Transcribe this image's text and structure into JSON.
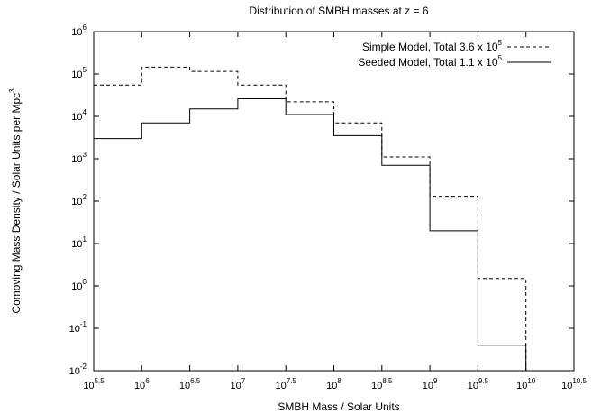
{
  "chart_data": {
    "type": "line",
    "step": true,
    "title": "Distribution of SMBH masses at z = 6",
    "xlabel": "SMBH Mass / Solar Units",
    "ylabel": "Comoving Mass Density / Solar Units per Mpc",
    "ylabel_sup": "3",
    "x_scale": "log",
    "y_scale": "log",
    "xlim": [
      316227.766,
      31622776601.7
    ],
    "ylim": [
      0.01,
      1000000
    ],
    "x_ticks": [
      {
        "base": "10",
        "exp": "5.5",
        "value": 316227.766
      },
      {
        "base": "10",
        "exp": "6",
        "value": 1000000
      },
      {
        "base": "10",
        "exp": "6.5",
        "value": 3162277.66
      },
      {
        "base": "10",
        "exp": "7",
        "value": 10000000
      },
      {
        "base": "10",
        "exp": "7.5",
        "value": 31622776.6
      },
      {
        "base": "10",
        "exp": "8",
        "value": 100000000
      },
      {
        "base": "10",
        "exp": "8.5",
        "value": 316227766
      },
      {
        "base": "10",
        "exp": "9",
        "value": 1000000000
      },
      {
        "base": "10",
        "exp": "9.5",
        "value": 3162277660
      },
      {
        "base": "10",
        "exp": "10",
        "value": 10000000000
      },
      {
        "base": "10",
        "exp": "10.5",
        "value": 31622776601.7
      }
    ],
    "y_ticks": [
      {
        "base": "10",
        "exp": "-2",
        "value": 0.01
      },
      {
        "base": "10",
        "exp": "-1",
        "value": 0.1
      },
      {
        "base": "10",
        "exp": "0",
        "value": 1
      },
      {
        "base": "10",
        "exp": "1",
        "value": 10
      },
      {
        "base": "10",
        "exp": "2",
        "value": 100
      },
      {
        "base": "10",
        "exp": "3",
        "value": 1000
      },
      {
        "base": "10",
        "exp": "4",
        "value": 10000
      },
      {
        "base": "10",
        "exp": "5",
        "value": 100000
      },
      {
        "base": "10",
        "exp": "6",
        "value": 1000000
      }
    ],
    "bin_edges": [
      316227.766,
      1000000,
      3162277.66,
      10000000,
      31622776.6,
      100000000,
      316227766,
      1000000000,
      3162277660,
      10000000000
    ],
    "series": [
      {
        "name": "Simple Model, Total 3.6 x 10",
        "name_sup": "5",
        "dash": "dashed",
        "values": [
          55000,
          145000,
          115000,
          55000,
          22000,
          7000,
          1100,
          130,
          1.5
        ]
      },
      {
        "name": "Seeded Model, Total 1.1 x 10",
        "name_sup": "5",
        "dash": "solid",
        "values": [
          3000,
          7000,
          15000,
          26000,
          11000,
          3500,
          700,
          20,
          0.04
        ]
      }
    ],
    "grid": false,
    "legend": "top-right"
  }
}
